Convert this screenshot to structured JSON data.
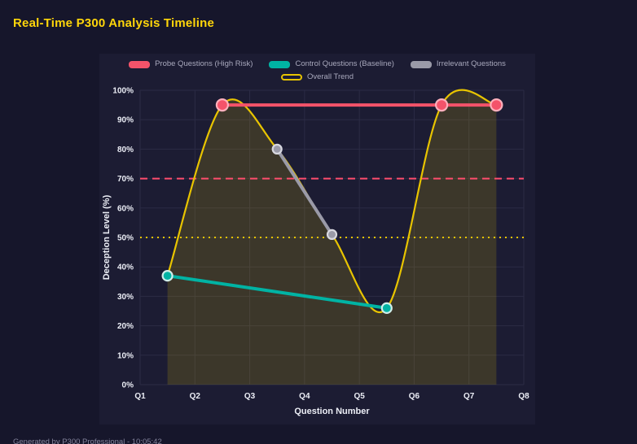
{
  "page": {
    "title": "Real-Time P300 Analysis Timeline",
    "footer": "Generated by P300 Professional - 10:05:42"
  },
  "colors": {
    "background": "#16162b",
    "panel": "#1c1c33",
    "grid": "#2b2b45",
    "title": "#ffd60a",
    "axis_text": "#eceef6",
    "legend_text": "#a9a9bd",
    "probe": "#f4536a",
    "control": "#00b3a4",
    "irrelevant": "#9a9aa8",
    "trend": "#e8c400",
    "threshold_high": "#ff4d6d",
    "threshold_mid": "#e8c400",
    "area_fill": "rgba(232,196,0,0.16)"
  },
  "chart_data": {
    "type": "line",
    "title": "Real-Time P300 Analysis Timeline",
    "xlabel": "Question Number",
    "ylabel": "Deception Level (%)",
    "x_ticks": [
      "Q1",
      "Q2",
      "Q3",
      "Q4",
      "Q5",
      "Q6",
      "Q7",
      "Q8"
    ],
    "x_range": [
      1,
      8
    ],
    "ylim": [
      0,
      100
    ],
    "y_tick_step": 10,
    "y_tick_suffix": "%",
    "grid": true,
    "legend_position": "top",
    "legend_rows": [
      [
        0,
        1,
        2
      ],
      [
        3
      ]
    ],
    "series": [
      {
        "name": "Probe Questions (High Risk)",
        "key": "probe",
        "points": [
          [
            2.5,
            95
          ],
          [
            6.5,
            95
          ],
          [
            7.5,
            95
          ]
        ]
      },
      {
        "name": "Control Questions (Baseline)",
        "key": "control",
        "points": [
          [
            1.5,
            37
          ],
          [
            5.5,
            26
          ]
        ]
      },
      {
        "name": "Irrelevant Questions",
        "key": "irrelevant",
        "points": [
          [
            3.5,
            80
          ],
          [
            4.5,
            51
          ]
        ]
      },
      {
        "name": "Overall Trend",
        "key": "trend",
        "smooth": true,
        "area": true,
        "points": [
          [
            1.5,
            37
          ],
          [
            2.5,
            95
          ],
          [
            3.5,
            80
          ],
          [
            4.5,
            51
          ],
          [
            5.5,
            26
          ],
          [
            6.5,
            95
          ],
          [
            7.5,
            95
          ]
        ]
      }
    ],
    "thresholds": [
      {
        "value": 70,
        "style": "dashed",
        "key": "threshold_high"
      },
      {
        "value": 50,
        "style": "dotted",
        "key": "threshold_mid"
      }
    ]
  }
}
